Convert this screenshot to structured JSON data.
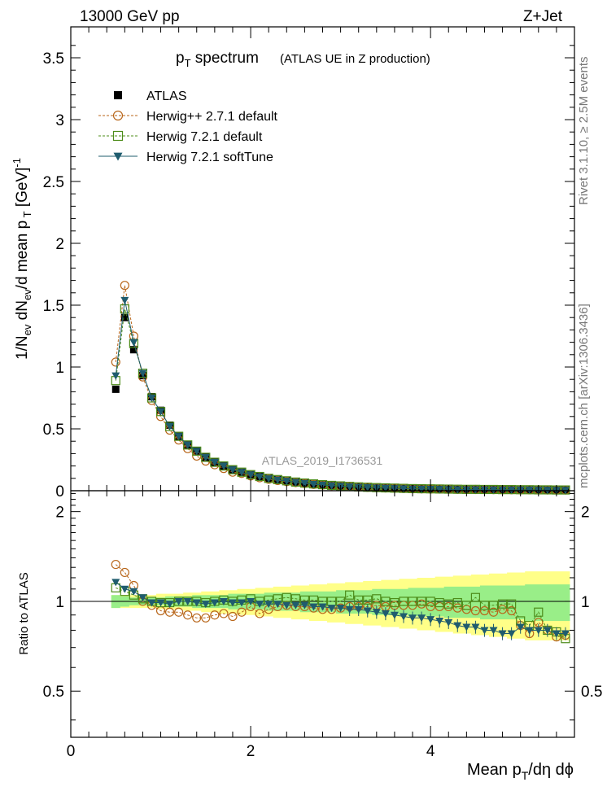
{
  "header": {
    "left": "13000 GeV pp",
    "right": "Z+Jet"
  },
  "title": {
    "main": "p",
    "sub": "T",
    "rest": " spectrum",
    "detail": "(ATLAS UE in Z production)"
  },
  "side_labels": {
    "rivet": "Rivet 3.1.10, ≥ 2.5M events",
    "mcplots": "mcplots.cern.ch [arXiv:1306.3436]"
  },
  "watermark": "ATLAS_2019_I1736531",
  "axes": {
    "main_ylabel": "1/N_ev dN_ev/d mean p_T [GeV]^-1",
    "ratio_ylabel": "Ratio to ATLAS",
    "xlabel": "Mean p_T/dη dϕ",
    "main_yticks": [
      "0",
      "0.5",
      "1",
      "1.5",
      "2",
      "2.5",
      "3",
      "3.5"
    ],
    "ratio_yticks": [
      "0.5",
      "1",
      "2"
    ],
    "xticks": [
      "0",
      "2",
      "4"
    ]
  },
  "legend": [
    {
      "label": "ATLAS",
      "marker": "square-filled",
      "color": "#000000"
    },
    {
      "label": "Herwig++ 2.7.1 default",
      "marker": "circle-open",
      "color": "#b8661a"
    },
    {
      "label": "Herwig 7.2.1 default",
      "marker": "square-open",
      "color": "#4d8c1a"
    },
    {
      "label": "Herwig 7.2.1 softTune",
      "marker": "triangle-down",
      "color": "#1f5c6e"
    }
  ],
  "chart_data": {
    "type": "scatter",
    "xlim": [
      0,
      5.6
    ],
    "ylim": [
      0,
      3.75
    ],
    "ratio_ylim": [
      0.35,
      2.35
    ],
    "ratio_scale": "log",
    "x": [
      0.5,
      0.6,
      0.7,
      0.8,
      0.9,
      1.0,
      1.1,
      1.2,
      1.3,
      1.4,
      1.5,
      1.6,
      1.7,
      1.8,
      1.9,
      2.0,
      2.1,
      2.2,
      2.3,
      2.4,
      2.5,
      2.6,
      2.7,
      2.8,
      2.9,
      3.0,
      3.1,
      3.2,
      3.3,
      3.4,
      3.5,
      3.6,
      3.7,
      3.8,
      3.9,
      4.0,
      4.1,
      4.2,
      4.3,
      4.4,
      4.5,
      4.6,
      4.7,
      4.8,
      4.9,
      5.0,
      5.1,
      5.2,
      5.3,
      5.4,
      5.5
    ],
    "series": [
      {
        "name": "ATLAS",
        "values": [
          0.82,
          1.4,
          1.14,
          0.93,
          0.76,
          0.65,
          0.53,
          0.44,
          0.37,
          0.32,
          0.27,
          0.23,
          0.2,
          0.17,
          0.15,
          0.13,
          0.115,
          0.1,
          0.09,
          0.08,
          0.07,
          0.062,
          0.055,
          0.049,
          0.043,
          0.039,
          0.035,
          0.031,
          0.028,
          0.025,
          0.023,
          0.021,
          0.019,
          0.017,
          0.016,
          0.015,
          0.014,
          0.013,
          0.012,
          0.011,
          0.011,
          0.01,
          0.01,
          0.009,
          0.009,
          0.008,
          0.008,
          0.008,
          0.007,
          0.007,
          0.007
        ]
      },
      {
        "name": "Herwig++ 2.7.1 default",
        "values": [
          1.04,
          1.66,
          1.25,
          0.92,
          0.73,
          0.6,
          0.49,
          0.41,
          0.34,
          0.28,
          0.24,
          0.21,
          0.18,
          0.15,
          0.14,
          0.12,
          0.105,
          0.093,
          0.083,
          0.074,
          0.066,
          0.058,
          0.051,
          0.046,
          0.041,
          0.037,
          0.033,
          0.03,
          0.027,
          0.024,
          0.022,
          0.02,
          0.018,
          0.016,
          0.015,
          0.014,
          0.013,
          0.012,
          0.011,
          0.01,
          0.01,
          0.009,
          0.009,
          0.008,
          0.008,
          0.007,
          0.007,
          0.007,
          0.006,
          0.006,
          0.006
        ]
      },
      {
        "name": "Herwig 7.2.1 default",
        "values": [
          0.89,
          1.47,
          1.19,
          0.95,
          0.75,
          0.64,
          0.52,
          0.44,
          0.37,
          0.32,
          0.27,
          0.23,
          0.2,
          0.17,
          0.15,
          0.13,
          0.115,
          0.1,
          0.09,
          0.08,
          0.07,
          0.062,
          0.055,
          0.049,
          0.043,
          0.039,
          0.035,
          0.031,
          0.028,
          0.025,
          0.023,
          0.021,
          0.019,
          0.017,
          0.016,
          0.015,
          0.014,
          0.013,
          0.012,
          0.011,
          0.011,
          0.01,
          0.01,
          0.009,
          0.009,
          0.008,
          0.008,
          0.007,
          0.007,
          0.006,
          0.006
        ]
      },
      {
        "name": "Herwig 7.2.1 softTune",
        "values": [
          0.93,
          1.54,
          1.2,
          0.95,
          0.75,
          0.64,
          0.52,
          0.44,
          0.37,
          0.32,
          0.27,
          0.23,
          0.2,
          0.17,
          0.15,
          0.13,
          0.113,
          0.098,
          0.088,
          0.078,
          0.068,
          0.06,
          0.053,
          0.047,
          0.041,
          0.037,
          0.033,
          0.029,
          0.026,
          0.023,
          0.021,
          0.019,
          0.017,
          0.015,
          0.014,
          0.013,
          0.012,
          0.011,
          0.01,
          0.009,
          0.009,
          0.008,
          0.008,
          0.007,
          0.007,
          0.007,
          0.007,
          0.006,
          0.006,
          0.005,
          0.005
        ]
      }
    ],
    "ratio": [
      {
        "name": "Herwig++ 2.7.1 default",
        "values": [
          1.33,
          1.25,
          1.13,
          1.0,
          0.97,
          0.93,
          0.92,
          0.92,
          0.9,
          0.88,
          0.88,
          0.9,
          0.91,
          0.89,
          0.92,
          0.96,
          0.91,
          0.94,
          0.96,
          0.97,
          0.96,
          0.96,
          0.95,
          0.94,
          0.94,
          0.95,
          0.96,
          0.96,
          0.96,
          0.97,
          0.96,
          0.97,
          0.97,
          0.97,
          0.98,
          0.96,
          0.96,
          0.96,
          0.95,
          0.94,
          0.93,
          0.93,
          0.92,
          0.94,
          0.93,
          0.83,
          0.78,
          0.85,
          0.8,
          0.76,
          0.77
        ]
      },
      {
        "name": "Herwig 7.2.1 default",
        "values": [
          1.11,
          1.08,
          1.05,
          1.02,
          1.0,
          0.99,
          0.99,
          1.0,
          1.0,
          1.0,
          0.99,
          1.0,
          1.01,
          1.0,
          1.01,
          1.02,
          1.0,
          1.01,
          1.02,
          1.03,
          1.02,
          1.01,
          1.01,
          1.0,
          1.0,
          1.0,
          1.05,
          1.01,
          1.01,
          1.02,
          1.0,
          0.99,
          1.0,
          1.0,
          1.0,
          1.0,
          0.99,
          0.98,
          0.99,
          0.97,
          1.03,
          0.97,
          0.97,
          0.98,
          0.98,
          0.86,
          0.83,
          0.92,
          0.8,
          0.79,
          0.75
        ]
      },
      {
        "name": "Herwig 7.2.1 softTune",
        "values": [
          1.16,
          1.1,
          1.08,
          1.03,
          0.99,
          0.99,
          0.98,
          1.0,
          1.0,
          0.99,
          0.98,
          0.99,
          1.0,
          0.99,
          0.99,
          1.0,
          0.98,
          0.98,
          0.98,
          0.97,
          0.97,
          0.97,
          0.96,
          0.96,
          0.95,
          0.95,
          0.94,
          0.94,
          0.93,
          0.92,
          0.91,
          0.9,
          0.89,
          0.88,
          0.88,
          0.87,
          0.86,
          0.85,
          0.83,
          0.82,
          0.82,
          0.8,
          0.8,
          0.78,
          0.78,
          0.82,
          0.8,
          0.8,
          0.8,
          0.78,
          0.78
        ]
      }
    ],
    "band_inner": [
      0.05,
      0.04,
      0.03,
      0.03,
      0.03,
      0.03,
      0.04,
      0.04,
      0.04,
      0.05,
      0.05,
      0.05,
      0.05,
      0.06,
      0.06,
      0.06,
      0.06,
      0.07,
      0.07,
      0.07,
      0.07,
      0.08,
      0.08,
      0.08,
      0.08,
      0.09,
      0.09,
      0.09,
      0.09,
      0.1,
      0.1,
      0.1,
      0.1,
      0.11,
      0.11,
      0.11,
      0.11,
      0.12,
      0.12,
      0.12,
      0.12,
      0.13,
      0.13,
      0.13,
      0.13,
      0.13,
      0.14,
      0.14,
      0.14,
      0.14,
      0.14
    ],
    "band_outer": [
      0.05,
      0.05,
      0.05,
      0.05,
      0.05,
      0.06,
      0.06,
      0.06,
      0.07,
      0.07,
      0.08,
      0.08,
      0.09,
      0.09,
      0.1,
      0.1,
      0.11,
      0.11,
      0.12,
      0.12,
      0.13,
      0.13,
      0.14,
      0.14,
      0.15,
      0.15,
      0.16,
      0.16,
      0.17,
      0.17,
      0.18,
      0.18,
      0.19,
      0.19,
      0.2,
      0.2,
      0.21,
      0.21,
      0.22,
      0.22,
      0.23,
      0.23,
      0.24,
      0.24,
      0.25,
      0.25,
      0.26,
      0.26,
      0.26,
      0.26,
      0.26
    ],
    "band_colors": {
      "inner": "#99ee88",
      "outer": "#ffff88"
    }
  }
}
